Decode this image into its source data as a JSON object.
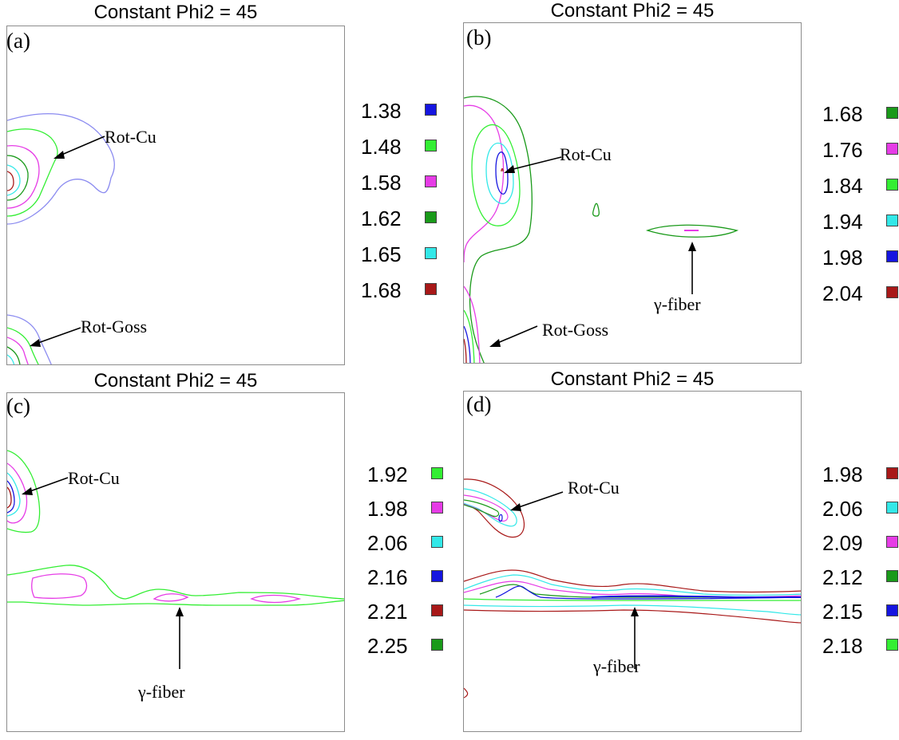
{
  "panels": [
    {
      "label": "(a)",
      "title": "Constant Phi2 = 45",
      "annotations": [
        "Rot-Cu",
        "Rot-Goss"
      ],
      "legend": [
        {
          "value": "1.38",
          "color": "#1515e0"
        },
        {
          "value": "1.48",
          "color": "#33ee33"
        },
        {
          "value": "1.58",
          "color": "#e63ce6"
        },
        {
          "value": "1.62",
          "color": "#1a9a1a"
        },
        {
          "value": "1.65",
          "color": "#33e8e8"
        },
        {
          "value": "1.68",
          "color": "#a81818"
        }
      ]
    },
    {
      "label": "(b)",
      "title": "Constant Phi2 = 45",
      "annotations": [
        "Rot-Cu",
        "γ-fiber",
        "Rot-Goss"
      ],
      "legend": [
        {
          "value": "1.68",
          "color": "#1a9a1a"
        },
        {
          "value": "1.76",
          "color": "#e63ce6"
        },
        {
          "value": "1.84",
          "color": "#33ee33"
        },
        {
          "value": "1.94",
          "color": "#33e8e8"
        },
        {
          "value": "1.98",
          "color": "#1515e0"
        },
        {
          "value": "2.04",
          "color": "#a81818"
        }
      ]
    },
    {
      "label": "(c)",
      "title": "Constant Phi2 = 45",
      "annotations": [
        "Rot-Cu",
        "γ-fiber"
      ],
      "legend": [
        {
          "value": "1.92",
          "color": "#33ee33"
        },
        {
          "value": "1.98",
          "color": "#e63ce6"
        },
        {
          "value": "2.06",
          "color": "#33e8e8"
        },
        {
          "value": "2.16",
          "color": "#1515e0"
        },
        {
          "value": "2.21",
          "color": "#a81818"
        },
        {
          "value": "2.25",
          "color": "#1a9a1a"
        }
      ]
    },
    {
      "label": "(d)",
      "title": "Constant Phi2 = 45",
      "annotations": [
        "Rot-Cu",
        "γ-fiber"
      ],
      "legend": [
        {
          "value": "1.98",
          "color": "#a81818"
        },
        {
          "value": "2.06",
          "color": "#33e8e8"
        },
        {
          "value": "2.09",
          "color": "#e63ce6"
        },
        {
          "value": "2.12",
          "color": "#1a9a1a"
        },
        {
          "value": "2.15",
          "color": "#1515e0"
        },
        {
          "value": "2.18",
          "color": "#33ee33"
        }
      ]
    }
  ],
  "chart_data": [
    {
      "type": "contour",
      "title": "Constant Phi2 = 45",
      "levels": [
        1.38,
        1.48,
        1.58,
        1.62,
        1.65,
        1.68
      ],
      "legend_placement": "right"
    },
    {
      "type": "contour",
      "title": "Constant Phi2 = 45",
      "levels": [
        1.68,
        1.76,
        1.84,
        1.94,
        1.98,
        2.04
      ],
      "legend_placement": "right"
    },
    {
      "type": "contour",
      "title": "Constant Phi2 = 45",
      "levels": [
        1.92,
        1.98,
        2.06,
        2.16,
        2.21,
        2.25
      ],
      "legend_placement": "right"
    },
    {
      "type": "contour",
      "title": "Constant Phi2 = 45",
      "levels": [
        1.98,
        2.06,
        2.09,
        2.12,
        2.15,
        2.18
      ],
      "legend_placement": "right"
    }
  ]
}
